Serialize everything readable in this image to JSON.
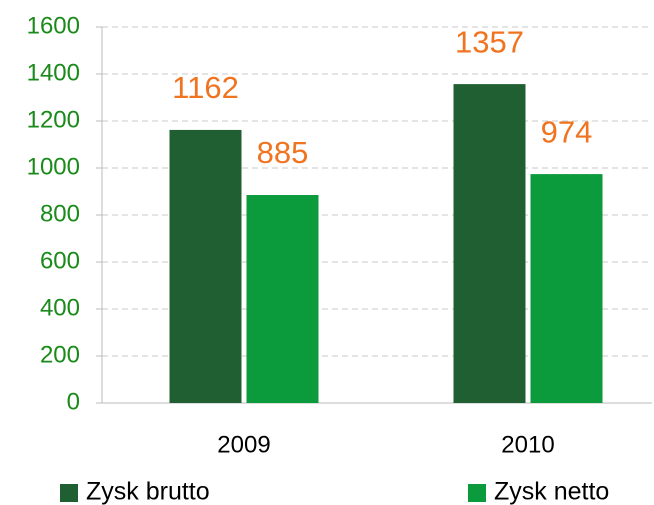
{
  "chart_data": {
    "type": "bar",
    "categories": [
      "2009",
      "2010"
    ],
    "series": [
      {
        "name": "Zysk brutto",
        "color": "#1f5f32",
        "values": [
          1162,
          1357
        ]
      },
      {
        "name": "Zysk netto",
        "color": "#0b9a3c",
        "values": [
          885,
          974
        ]
      }
    ],
    "ylim": [
      0,
      1600
    ],
    "yticks": [
      0,
      200,
      400,
      600,
      800,
      1000,
      1200,
      1400,
      1600
    ],
    "grid": true,
    "value_label_color": "#f07320",
    "legend": "bottom"
  }
}
